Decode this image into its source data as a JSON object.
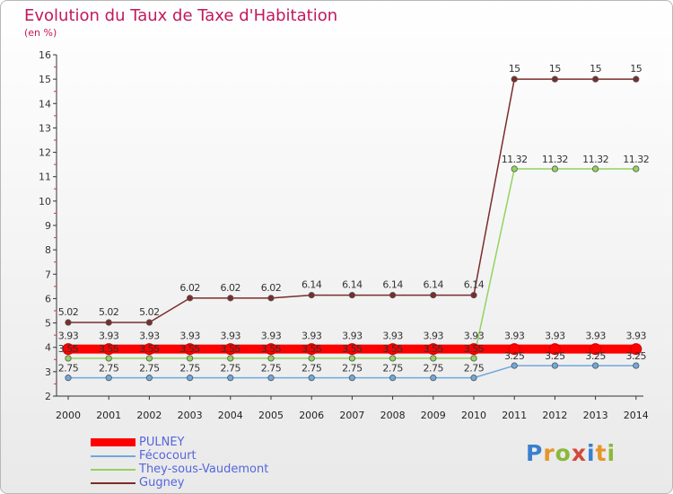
{
  "title": "Evolution du Taux de Taxe d'Habitation",
  "subtitle": "(en %)",
  "logo_text": "Proxiti",
  "chart_data": {
    "type": "line",
    "x": [
      "2000",
      "2001",
      "2002",
      "2003",
      "2004",
      "2005",
      "2006",
      "2007",
      "2008",
      "2009",
      "2010",
      "2011",
      "2012",
      "2013",
      "2014"
    ],
    "ylim": [
      2,
      16
    ],
    "yticks": [
      2,
      3,
      4,
      5,
      6,
      7,
      8,
      9,
      10,
      11,
      12,
      13,
      14,
      15,
      16
    ],
    "grid": false,
    "legend_position": "bottom-left",
    "series": [
      {
        "name": "PULNEY",
        "color": "#ff0000",
        "values": [
          3.93,
          3.93,
          3.93,
          3.93,
          3.93,
          3.93,
          3.93,
          3.93,
          3.93,
          3.93,
          3.93,
          3.93,
          3.93,
          3.93,
          3.93
        ],
        "labels": [
          "3.93",
          "3.93",
          "3.93",
          "3.93",
          "3.93",
          "3.93",
          "3.93",
          "3.93",
          "3.93",
          "3.93",
          "3.93",
          "3.93",
          "3.93",
          "3.93",
          "3.93"
        ]
      },
      {
        "name": "Fécocourt",
        "color": "#6fa8dc",
        "values": [
          2.75,
          2.75,
          2.75,
          2.75,
          2.75,
          2.75,
          2.75,
          2.75,
          2.75,
          2.75,
          2.75,
          3.25,
          3.25,
          3.25,
          3.25
        ],
        "labels": [
          "2.75",
          "2.75",
          "2.75",
          "2.75",
          "2.75",
          "2.75",
          "2.75",
          "2.75",
          "2.75",
          "2.75",
          "2.75",
          "3.25",
          "3.25",
          "3.25",
          "3.25"
        ]
      },
      {
        "name": "They-sous-Vaudemont",
        "color": "#93d35f",
        "values": [
          3.55,
          3.55,
          3.55,
          3.55,
          3.55,
          3.55,
          3.55,
          3.55,
          3.55,
          3.55,
          3.55,
          11.32,
          11.32,
          11.32,
          11.32
        ],
        "labels": [
          "3.55",
          "3.55",
          "3.55",
          "3.55",
          "3.55",
          "3.55",
          "3.55",
          "3.55",
          "3.55",
          "3.55",
          "3.55",
          "11.32",
          "11.32",
          "11.32",
          "11.32"
        ]
      },
      {
        "name": "Gugney",
        "color": "#7b2c2c",
        "values": [
          5.02,
          5.02,
          5.02,
          6.02,
          6.02,
          6.02,
          6.14,
          6.14,
          6.14,
          6.14,
          6.14,
          15,
          15,
          15,
          15
        ],
        "labels": [
          "5.02",
          "5.02",
          "5.02",
          "6.02",
          "6.02",
          "6.02",
          "6.14",
          "6.14",
          "6.14",
          "6.14",
          "6.14",
          "15",
          "15",
          "15",
          "15"
        ]
      }
    ]
  }
}
